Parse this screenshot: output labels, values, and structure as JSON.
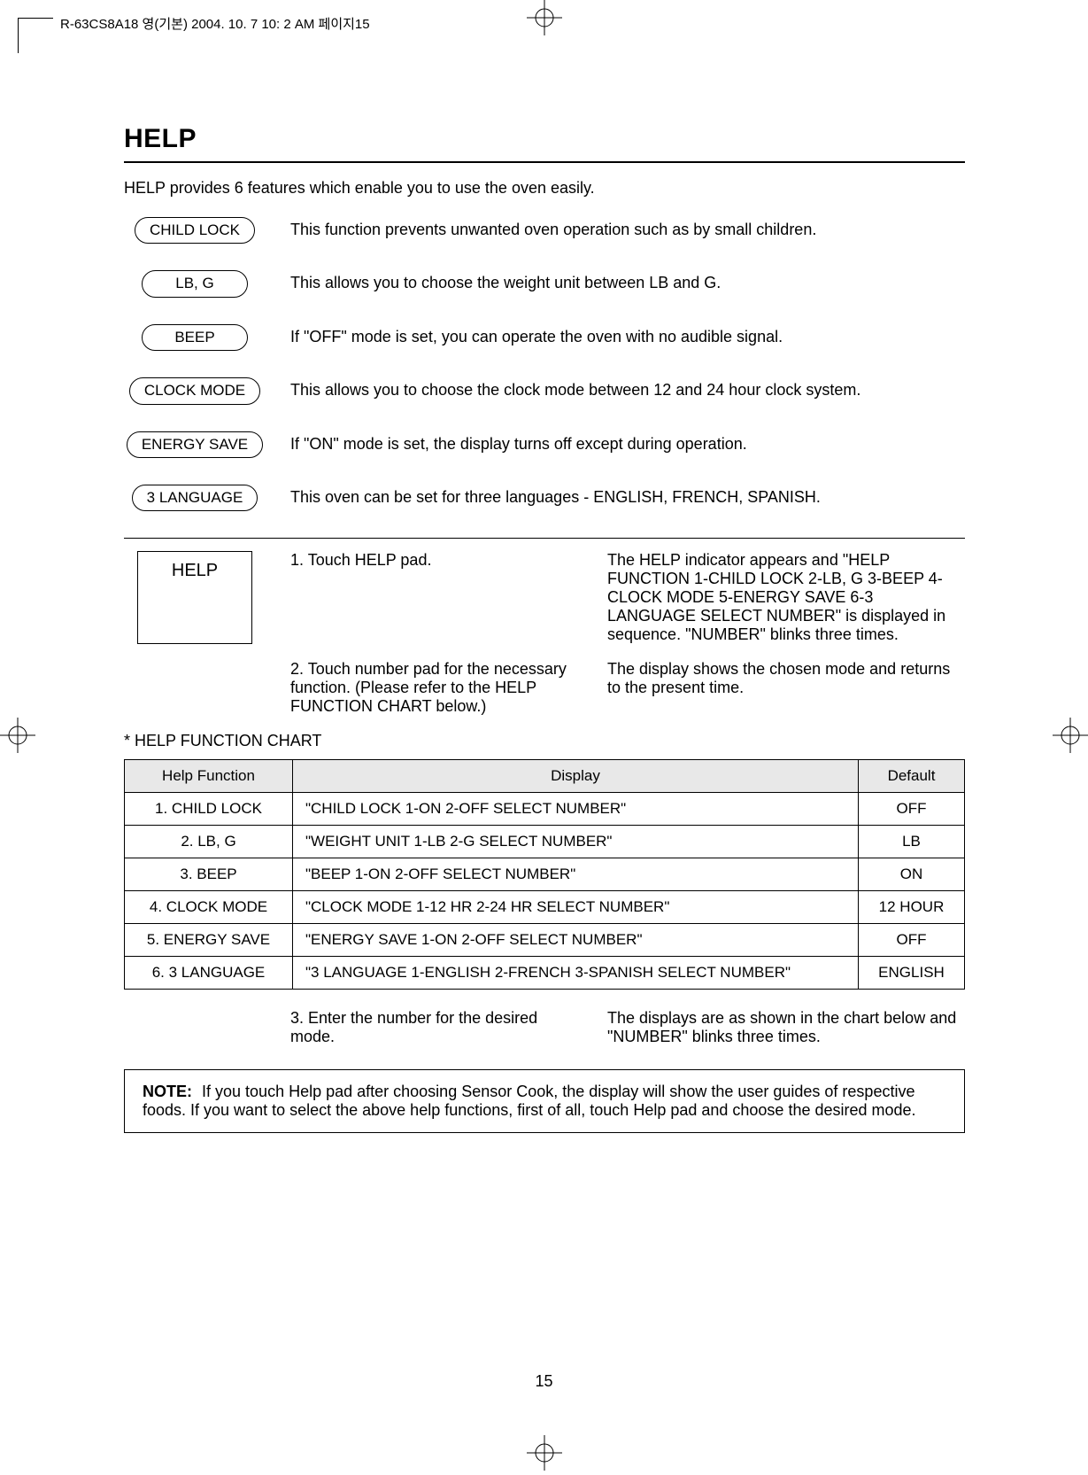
{
  "header": {
    "doc_info": "R-63CS8A18 영(기본)  2004. 10. 7 10: 2 AM  페이지15"
  },
  "title": "HELP",
  "intro": "HELP provides 6 features which enable you to use the oven easily.",
  "features": [
    {
      "label": "CHILD LOCK",
      "desc": "This function prevents unwanted oven operation such as by small children."
    },
    {
      "label": "LB, G",
      "desc": "This allows you to choose the weight unit between LB and G."
    },
    {
      "label": "BEEP",
      "desc": "If \"OFF\" mode is set, you can operate the oven with no audible signal."
    },
    {
      "label": "CLOCK MODE",
      "desc": "This allows you to choose the clock mode between 12 and 24 hour clock system."
    },
    {
      "label": "ENERGY SAVE",
      "desc": "If \"ON\" mode is set, the display turns off except during operation."
    },
    {
      "label": "3 LANGUAGE",
      "desc": "This oven can be set for three languages - ENGLISH, FRENCH, SPANISH."
    }
  ],
  "help_button": "HELP",
  "steps": [
    {
      "action": "1. Touch HELP pad.",
      "result": "The HELP indicator appears and \"HELP FUNCTION 1-CHILD LOCK 2-LB, G 3-BEEP 4-CLOCK MODE 5-ENERGY SAVE 6-3 LANGUAGE SELECT NUMBER\" is displayed in sequence. \"NUMBER\" blinks three times."
    },
    {
      "action": "2. Touch number pad for the necessary function. (Please refer to the HELP FUNCTION CHART below.)",
      "result": "The display shows the chosen mode and returns to the present time."
    }
  ],
  "chart_title": "* HELP FUNCTION CHART",
  "table": {
    "headers": [
      "Help Function",
      "Display",
      "Default"
    ],
    "rows": [
      [
        "1. CHILD LOCK",
        "\"CHILD LOCK 1-ON 2-OFF SELECT NUMBER\"",
        "OFF"
      ],
      [
        "2. LB, G",
        "\"WEIGHT UNIT 1-LB 2-G SELECT NUMBER\"",
        "LB"
      ],
      [
        "3. BEEP",
        "\"BEEP 1-ON 2-OFF SELECT NUMBER\"",
        "ON"
      ],
      [
        "4. CLOCK MODE",
        "\"CLOCK MODE 1-12 HR 2-24 HR SELECT NUMBER\"",
        "12 HOUR"
      ],
      [
        "5. ENERGY SAVE",
        "\"ENERGY SAVE 1-ON 2-OFF SELECT NUMBER\"",
        "OFF"
      ],
      [
        "6. 3 LANGUAGE",
        "\"3 LANGUAGE 1-ENGLISH 2-FRENCH 3-SPANISH SELECT NUMBER\"",
        "ENGLISH"
      ]
    ]
  },
  "step3": {
    "action": "3. Enter the number for the desired mode.",
    "result": "The displays are as shown in the chart below and \"NUMBER\" blinks three times."
  },
  "note_label": "NOTE:",
  "note_text": "If you touch Help pad after choosing Sensor Cook, the display will show the user guides of respective foods. If you want to select the above help functions, first of all, touch Help pad and choose the desired mode.",
  "page_number": "15",
  "colors": {
    "header_bg": "#e8e8e8",
    "border": "#000000",
    "text": "#000000",
    "bg": "#ffffff"
  }
}
